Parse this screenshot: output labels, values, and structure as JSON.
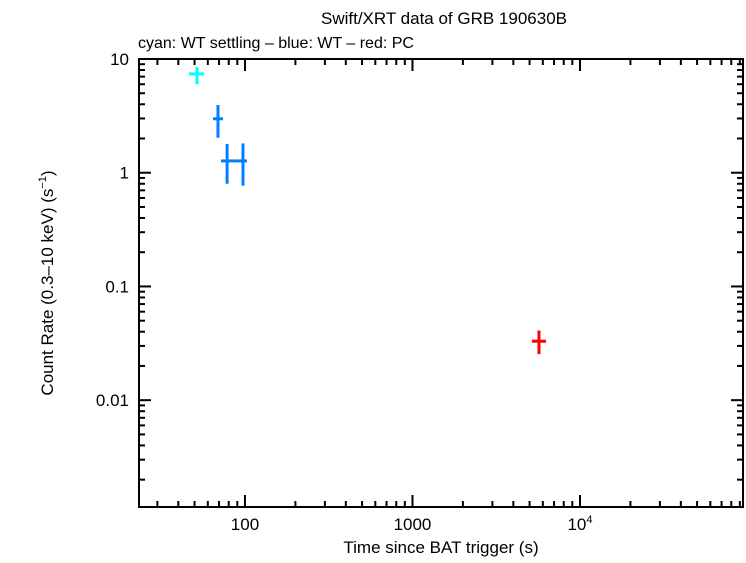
{
  "chart_data": {
    "type": "scatter",
    "title": "Swift/XRT data of GRB 190630B",
    "subtitle": "cyan: WT settling – blue: WT – red: PC",
    "xlabel": "Time since BAT trigger (s)",
    "ylabel": "Count Rate (0.3–10 keV) (s",
    "ylabel_sup": "−1",
    "ylabel_end": ")",
    "xscale": "log",
    "yscale": "log",
    "xlim": [
      23.3,
      94000
    ],
    "ylim": [
      0.00115,
      10
    ],
    "x_ticks": [
      {
        "v": 100,
        "label": "100"
      },
      {
        "v": 1000,
        "label": "1000"
      },
      {
        "v": 10000,
        "label": "10",
        "sup": "4"
      }
    ],
    "y_ticks": [
      {
        "v": 10,
        "label": "10"
      },
      {
        "v": 1,
        "label": "1"
      },
      {
        "v": 0.1,
        "label": "0.1"
      },
      {
        "v": 0.01,
        "label": "0.01"
      }
    ],
    "grid": false,
    "series": [
      {
        "name": "WT settling",
        "color": "#00ffff",
        "points": [
          {
            "x": 51.7,
            "xlo": 46.4,
            "xhi": 56.9,
            "y": 7.4,
            "ylo": 6.0,
            "yhi": 8.5
          }
        ]
      },
      {
        "name": "WT",
        "color": "#0080ff",
        "points": [
          {
            "x": 69,
            "xlo": 64.4,
            "xhi": 74,
            "y": 2.98,
            "ylo": 2.03,
            "yhi": 3.94
          },
          {
            "x": 78.2,
            "xlo": 71.9,
            "xhi": 86,
            "y": 1.27,
            "ylo": 0.8,
            "yhi": 1.79
          },
          {
            "x": 97.3,
            "xlo": 86,
            "xhi": 102.8,
            "y": 1.27,
            "ylo": 0.77,
            "yhi": 1.81
          }
        ]
      },
      {
        "name": "PC",
        "color": "#ff0000",
        "points": [
          {
            "x": 5690,
            "xlo": 5160,
            "xhi": 6270,
            "y": 0.033,
            "ylo": 0.0254,
            "yhi": 0.041
          }
        ]
      }
    ]
  }
}
